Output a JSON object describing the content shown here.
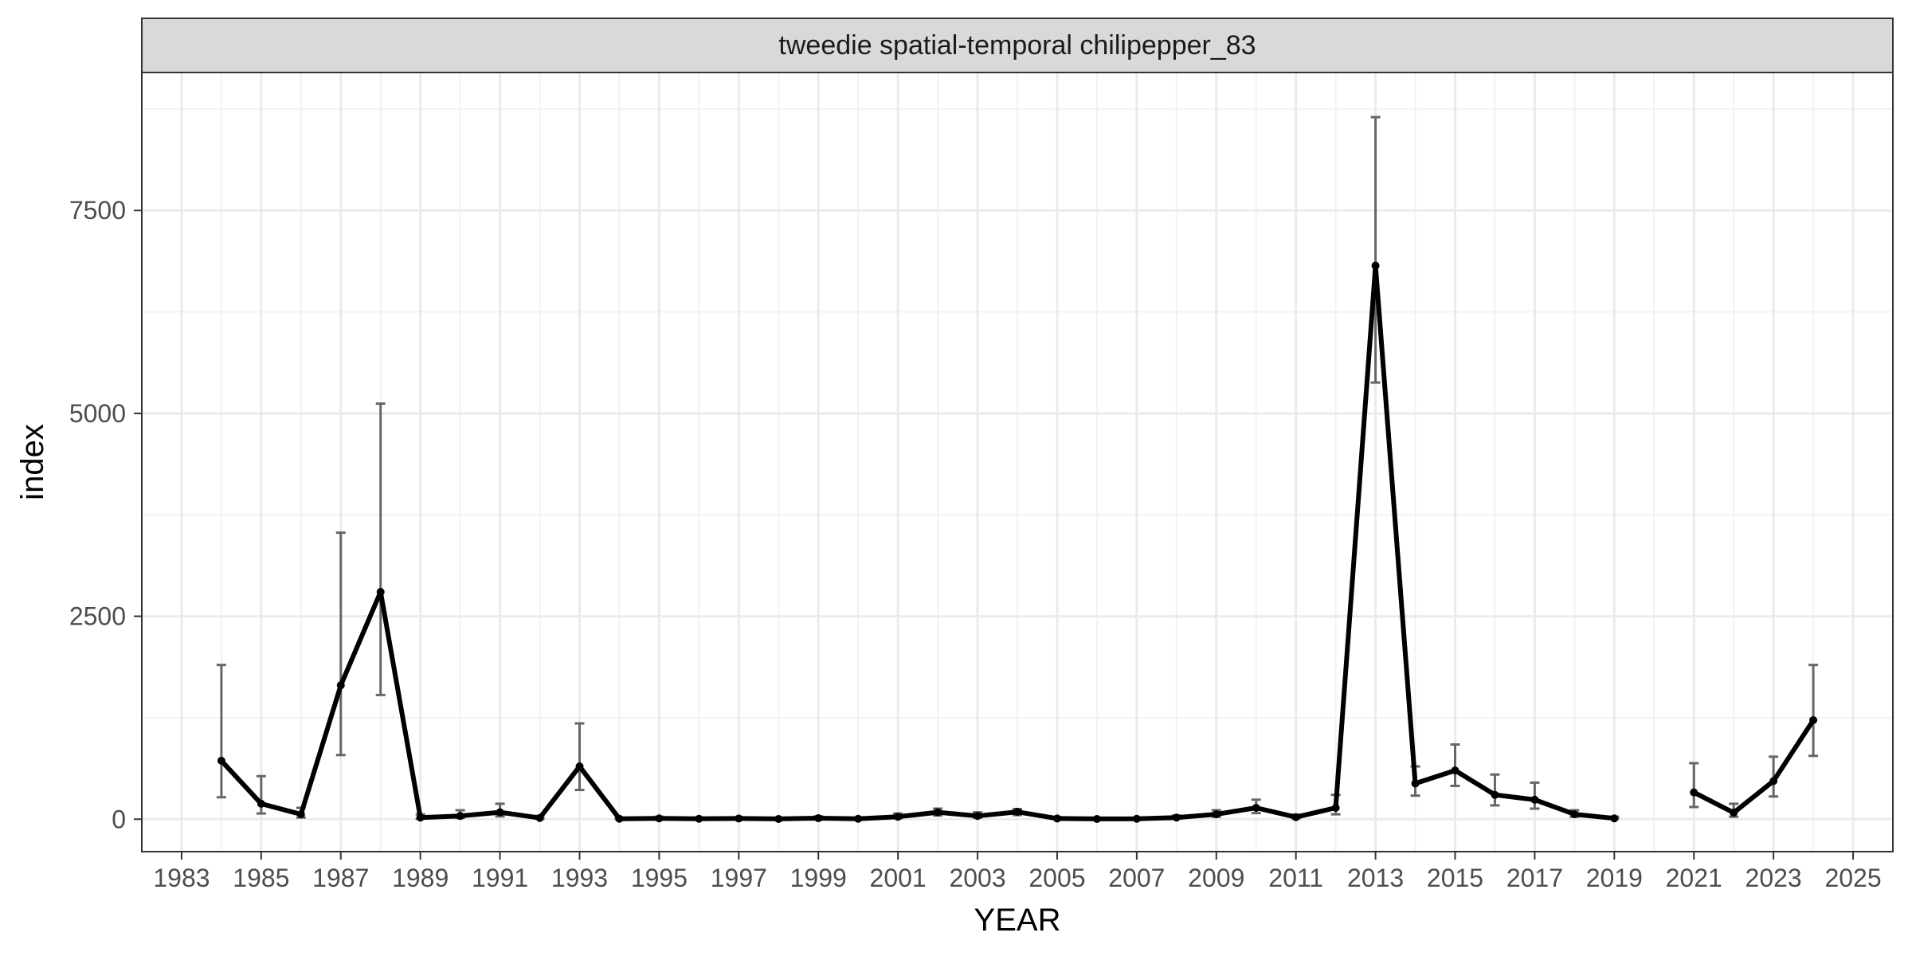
{
  "chart_data": {
    "type": "line",
    "title": "tweedie spatial-temporal chilipepper_83",
    "xlabel": "YEAR",
    "ylabel": "index",
    "xlim": [
      1982,
      2026
    ],
    "ylim": [
      -400,
      9200
    ],
    "x_ticks": [
      1983,
      1985,
      1987,
      1989,
      1991,
      1993,
      1995,
      1997,
      1999,
      2001,
      2003,
      2005,
      2007,
      2009,
      2011,
      2013,
      2015,
      2017,
      2019,
      2021,
      2023,
      2025
    ],
    "x_tick_labels": [
      "1983",
      "1985",
      "1987",
      "1989",
      "1991",
      "1993",
      "1995",
      "1997",
      "1999",
      "2001",
      "2003",
      "2005",
      "2007",
      "2009",
      "2011",
      "2013",
      "2015",
      "2017",
      "2019",
      "2021",
      "2023",
      "2025"
    ],
    "y_ticks": [
      0,
      2500,
      5000,
      7500
    ],
    "y_tick_labels": [
      "0",
      "2500",
      "5000",
      "7500"
    ],
    "grid": true,
    "line_color": "#000000",
    "errorbar_color": "#666666",
    "series": [
      {
        "segment": 1,
        "points": [
          {
            "x": 1984,
            "y": 720,
            "lo": 270,
            "hi": 1900
          },
          {
            "x": 1985,
            "y": 190,
            "lo": 70,
            "hi": 530
          },
          {
            "x": 1986,
            "y": 60,
            "lo": 20,
            "hi": 140
          },
          {
            "x": 1987,
            "y": 1650,
            "lo": 790,
            "hi": 3530
          },
          {
            "x": 1988,
            "y": 2800,
            "lo": 1530,
            "hi": 5120
          },
          {
            "x": 1989,
            "y": 20,
            "lo": 5,
            "hi": 60
          },
          {
            "x": 1990,
            "y": 40,
            "lo": 15,
            "hi": 110
          },
          {
            "x": 1991,
            "y": 85,
            "lo": 35,
            "hi": 190
          },
          {
            "x": 1992,
            "y": 15,
            "lo": 5,
            "hi": 40
          },
          {
            "x": 1993,
            "y": 650,
            "lo": 360,
            "hi": 1180
          },
          {
            "x": 1994,
            "y": 5,
            "lo": 1,
            "hi": 20
          },
          {
            "x": 1995,
            "y": 10,
            "lo": 3,
            "hi": 30
          },
          {
            "x": 1996,
            "y": 5,
            "lo": 1,
            "hi": 20
          },
          {
            "x": 1997,
            "y": 8,
            "lo": 2,
            "hi": 25
          },
          {
            "x": 1998,
            "y": 3,
            "lo": 1,
            "hi": 12
          },
          {
            "x": 1999,
            "y": 12,
            "lo": 4,
            "hi": 35
          },
          {
            "x": 2000,
            "y": 5,
            "lo": 1,
            "hi": 18
          },
          {
            "x": 2001,
            "y": 30,
            "lo": 12,
            "hi": 70
          },
          {
            "x": 2002,
            "y": 85,
            "lo": 45,
            "hi": 130
          },
          {
            "x": 2003,
            "y": 40,
            "lo": 18,
            "hi": 85
          },
          {
            "x": 2004,
            "y": 90,
            "lo": 50,
            "hi": 125
          },
          {
            "x": 2005,
            "y": 8,
            "lo": 2,
            "hi": 25
          },
          {
            "x": 2006,
            "y": 3,
            "lo": 1,
            "hi": 12
          },
          {
            "x": 2007,
            "y": 5,
            "lo": 1,
            "hi": 15
          },
          {
            "x": 2008,
            "y": 20,
            "lo": 8,
            "hi": 45
          },
          {
            "x": 2009,
            "y": 60,
            "lo": 30,
            "hi": 110
          },
          {
            "x": 2010,
            "y": 140,
            "lo": 75,
            "hi": 240
          },
          {
            "x": 2011,
            "y": 25,
            "lo": 10,
            "hi": 55
          },
          {
            "x": 2012,
            "y": 140,
            "lo": 60,
            "hi": 300
          },
          {
            "x": 2013,
            "y": 6820,
            "lo": 5380,
            "hi": 8650
          },
          {
            "x": 2014,
            "y": 440,
            "lo": 290,
            "hi": 650
          },
          {
            "x": 2015,
            "y": 600,
            "lo": 410,
            "hi": 920
          },
          {
            "x": 2016,
            "y": 300,
            "lo": 170,
            "hi": 550
          },
          {
            "x": 2017,
            "y": 240,
            "lo": 130,
            "hi": 450
          },
          {
            "x": 2018,
            "y": 60,
            "lo": 30,
            "hi": 110
          },
          {
            "x": 2019,
            "y": 10,
            "lo": 3,
            "hi": 30
          }
        ]
      },
      {
        "segment": 2,
        "points": [
          {
            "x": 2021,
            "y": 330,
            "lo": 150,
            "hi": 690
          },
          {
            "x": 2022,
            "y": 80,
            "lo": 30,
            "hi": 190
          },
          {
            "x": 2023,
            "y": 470,
            "lo": 280,
            "hi": 770
          },
          {
            "x": 2024,
            "y": 1220,
            "lo": 780,
            "hi": 1900
          }
        ]
      }
    ]
  }
}
